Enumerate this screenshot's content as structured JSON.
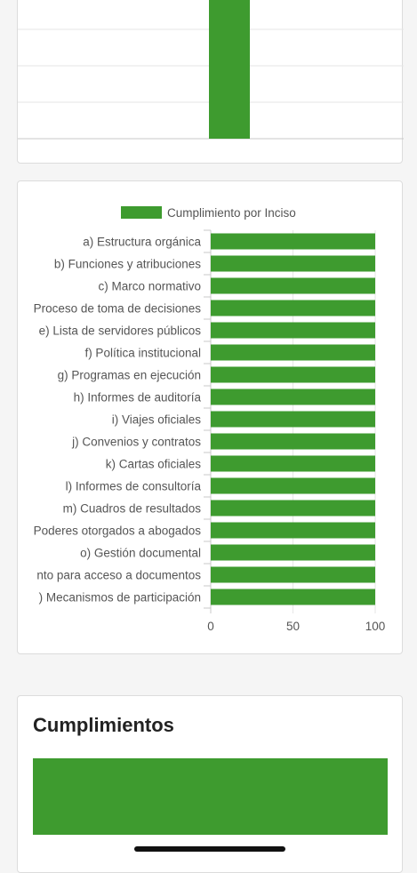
{
  "colors": {
    "accent": "#3e9b2f",
    "grid": "#e6e6e6",
    "axis": "#c8c8c8",
    "text": "#555555"
  },
  "cumplimientos": {
    "title": "Cumplimientos"
  },
  "chart_data": [
    {
      "type": "bar",
      "orientation": "vertical",
      "partial": true,
      "values": [
        100
      ],
      "grid": true
    },
    {
      "type": "bar",
      "orientation": "horizontal",
      "legend_position": "top",
      "series": [
        {
          "name": "Cumplimiento por Inciso",
          "values": [
            100,
            100,
            100,
            100,
            100,
            100,
            100,
            100,
            100,
            100,
            100,
            100,
            100,
            100,
            100,
            100,
            100
          ]
        }
      ],
      "categories": [
        "a) Estructura orgánica",
        "b) Funciones y atribuciones",
        "c) Marco normativo",
        "Proceso de toma de decisiones",
        "e) Lista de servidores públicos",
        "f) Política institucional",
        "g) Programas en ejecución",
        "h) Informes de auditoría",
        "i) Viajes oficiales",
        "j) Convenios y contratos",
        "k) Cartas oficiales",
        "l) Informes de consultoría",
        "m)  Cuadros de resultados",
        "Poderes otorgados a abogados",
        "o) Gestión documental",
        "nto para acceso a documentos",
        ") Mecanismos de participación"
      ],
      "xlim": [
        0,
        100
      ],
      "xticks": [
        "0",
        "50",
        "100"
      ],
      "grid": true
    },
    {
      "type": "bar",
      "orientation": "horizontal",
      "partial": true,
      "values": [
        100
      ]
    }
  ]
}
